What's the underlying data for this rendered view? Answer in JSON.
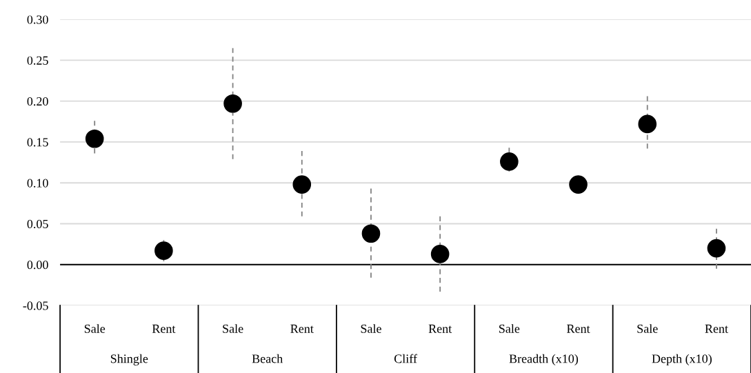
{
  "chart_data": {
    "type": "scatter",
    "categories": [
      "Sale",
      "Rent",
      "Sale",
      "Rent",
      "Sale",
      "Rent",
      "Sale",
      "Rent",
      "Sale",
      "Rent"
    ],
    "annotations": [
      "Shingle",
      "Beach",
      "Cliff",
      "Breadth (x10)",
      "Depth (x10)"
    ],
    "series": [
      {
        "color": "#000000",
        "values": [
          0.154,
          0.017,
          0.197,
          0.098,
          0.038,
          0.013,
          0.126,
          0.098,
          0.172,
          0.02
        ],
        "errors": [
          [
            0.136,
            0.176
          ],
          [
            0.004,
            0.03
          ],
          [
            0.129,
            0.265
          ],
          [
            0.059,
            0.139
          ],
          [
            -0.016,
            0.093
          ],
          [
            -0.033,
            0.059
          ],
          [
            0.114,
            0.143
          ],
          null,
          [
            0.142,
            0.206
          ],
          [
            -0.005,
            0.044
          ]
        ]
      }
    ],
    "ylim": [
      -0.05,
      0.3
    ],
    "yticks": [
      {
        "value": -0.05,
        "label": "-0.05"
      },
      {
        "value": 0,
        "label": "0.00"
      },
      {
        "value": 0.05,
        "label": "0.05"
      },
      {
        "value": 0.1,
        "label": "0.10"
      },
      {
        "value": 0.15,
        "label": "0.15"
      },
      {
        "value": 0.2,
        "label": "0.20"
      },
      {
        "value": 0.25,
        "label": "0.25"
      },
      {
        "value": 0.3,
        "label": "0.30"
      }
    ],
    "grid": "y",
    "marker": "circle",
    "legend": false,
    "ref_lines": [
      {
        "axis": "y",
        "value": 0,
        "color": "#000000"
      }
    ]
  }
}
